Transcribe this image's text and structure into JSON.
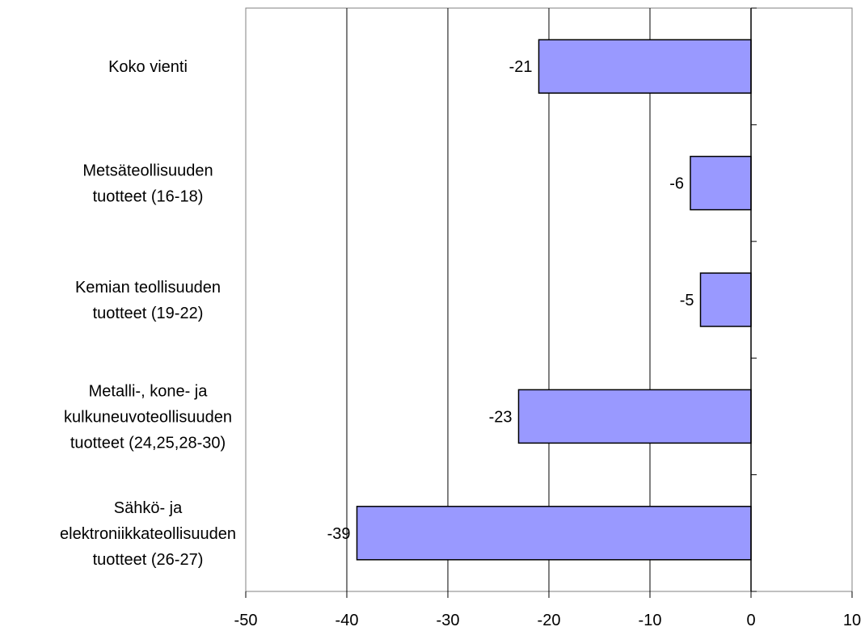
{
  "chart_data": {
    "type": "bar",
    "orientation": "horizontal",
    "categories": [
      [
        "Koko vienti"
      ],
      [
        "Metsäteollisuuden",
        "tuotteet (16-18)"
      ],
      [
        "Kemian teollisuuden",
        "tuotteet (19-22)"
      ],
      [
        "Metalli-, kone- ja",
        "kulkuneuvoteollisuuden",
        "tuotteet (24,25,28-30)"
      ],
      [
        "Sähkö- ja",
        "elektroniikkateollisuuden",
        "tuotteet (26-27)"
      ]
    ],
    "values": [
      -21,
      -6,
      -5,
      -23,
      -39
    ],
    "data_labels": [
      "-21",
      "-6",
      "-5",
      "-23",
      "-39"
    ],
    "xlim": [
      -50,
      10
    ],
    "x_ticks": [
      -50,
      -40,
      -30,
      -20,
      -10,
      0,
      10
    ],
    "x_tick_labels": [
      "-50",
      "-40",
      "-30",
      "-20",
      "-10",
      "0",
      "10"
    ],
    "grid": "vertical",
    "legend": "none",
    "title": "",
    "xlabel": "",
    "ylabel": "",
    "colors": {
      "bar_fill": "#9999ff",
      "bar_stroke": "#000000",
      "grid": "#000000",
      "plot_border": "#808080"
    }
  }
}
